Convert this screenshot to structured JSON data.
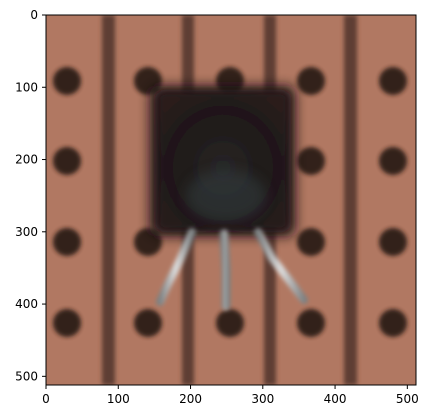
{
  "figure": {
    "kind": "matplotlib imshow of a photograph",
    "subject": "close-up photo of a black transistor-like component on copper stripboard with dark holes and vertical copper tracks",
    "x_axis": {
      "ticks": [
        "0",
        "100",
        "200",
        "300",
        "400",
        "500"
      ],
      "lim": [
        0,
        512
      ]
    },
    "y_axis": {
      "ticks": [
        "0",
        "100",
        "200",
        "300",
        "400",
        "500"
      ],
      "lim": [
        512,
        0
      ]
    },
    "colors": {
      "board": "#b47a64",
      "board_edge": "#9a6452",
      "track_dark": "#5a3a30",
      "hole": "#2a1a16",
      "component": "#151112",
      "component_tint": "#2a3a40",
      "leg": "#c0c6c8"
    },
    "axes_frame": "black",
    "grid": false
  }
}
